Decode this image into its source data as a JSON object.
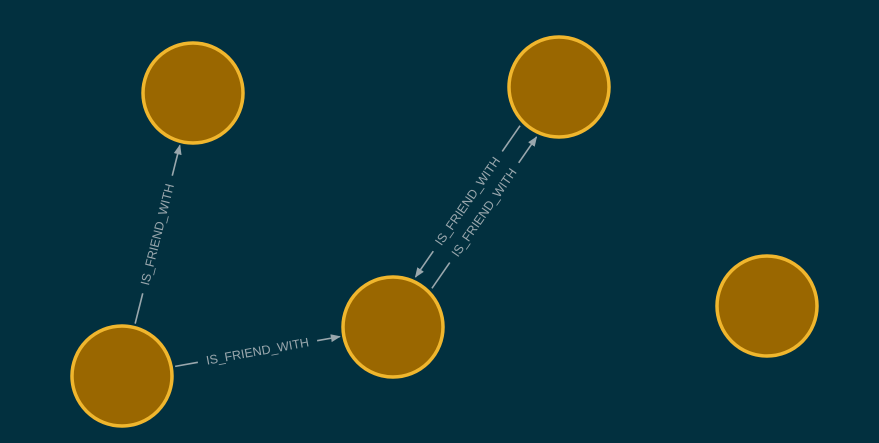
{
  "graph": {
    "background_color": "#02303f",
    "node_fill_color": "#9a6700",
    "node_stroke_color": "#f0b62d",
    "edge_color": "#9aa7ad",
    "nodes": [
      {
        "id": "n1"
      },
      {
        "id": "n2"
      },
      {
        "id": "n3"
      },
      {
        "id": "n4"
      },
      {
        "id": "n5"
      }
    ],
    "relationships": [
      {
        "id": "r1",
        "from": "n1",
        "to": "n2",
        "label": "IS_FRIEND_WITH"
      },
      {
        "id": "r2",
        "from": "n1",
        "to": "n3",
        "label": "IS_FRIEND_WITH"
      },
      {
        "id": "r3",
        "from": "n3",
        "to": "n4",
        "label": "IS_FRIEND_WITH"
      },
      {
        "id": "r4",
        "from": "n4",
        "to": "n3",
        "label": "IS_FRIEND_WITH"
      }
    ]
  }
}
